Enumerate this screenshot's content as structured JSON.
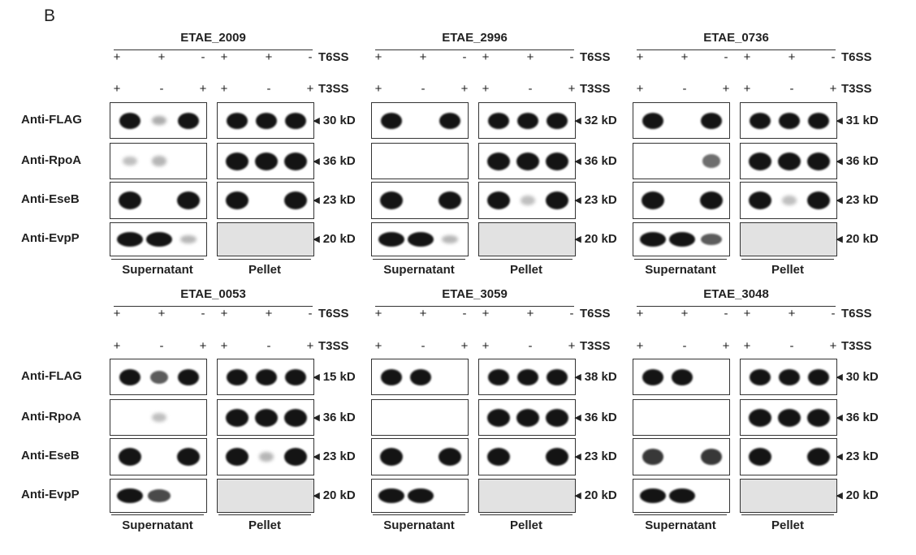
{
  "panel_label": "B",
  "t6ss_label": "T6SS",
  "t3ss_label": "T3SS",
  "antibodies": [
    "Anti-FLAG",
    "Anti-RpoA",
    "Anti-EseB",
    "Anti-EvpP"
  ],
  "fractions": [
    "Supernatant",
    "Pellet"
  ],
  "t6ss_signs": [
    "+",
    "+",
    "-",
    "+",
    "+",
    "-"
  ],
  "t3ss_signs": [
    "+",
    "-",
    "+",
    "+",
    "-",
    "+"
  ],
  "arrow_glyph": "◂",
  "groups": [
    {
      "protein": "ETAE_2009",
      "flag_mw": "30 kD",
      "rpoa_mw": "36 kD",
      "eseb_mw": "23 kD",
      "evpp_mw": "20 kD"
    },
    {
      "protein": "ETAE_2996",
      "flag_mw": "32 kD",
      "rpoa_mw": "36 kD",
      "eseb_mw": "23 kD",
      "evpp_mw": "20 kD"
    },
    {
      "protein": "ETAE_0736",
      "flag_mw": "31 kD",
      "rpoa_mw": "36 kD",
      "eseb_mw": "23 kD",
      "evpp_mw": "20 kD"
    },
    {
      "protein": "ETAE_0053",
      "flag_mw": "15 kD",
      "rpoa_mw": "36 kD",
      "eseb_mw": "23 kD",
      "evpp_mw": "20 kD"
    },
    {
      "protein": "ETAE_3059",
      "flag_mw": "38 kD",
      "rpoa_mw": "36 kD",
      "eseb_mw": "23 kD",
      "evpp_mw": "20 kD"
    },
    {
      "protein": "ETAE_3048",
      "flag_mw": "30 kD",
      "rpoa_mw": "36 kD",
      "eseb_mw": "23 kD",
      "evpp_mw": "20 kD"
    }
  ],
  "band_intensity": [
    {
      "sup": [
        [
          1,
          0.15,
          1
        ],
        [
          0.05,
          0.1,
          0
        ],
        [
          1,
          0,
          1
        ],
        [
          1,
          1,
          0.1
        ]
      ],
      "pel": [
        [
          1,
          1,
          1
        ],
        [
          1,
          1,
          1
        ],
        [
          1,
          0,
          1
        ],
        [
          0,
          0,
          0
        ]
      ]
    },
    {
      "sup": [
        [
          1,
          0,
          1
        ],
        [
          0,
          0,
          0
        ],
        [
          1,
          0,
          1
        ],
        [
          1,
          1,
          0.1
        ]
      ],
      "pel": [
        [
          1,
          1,
          1
        ],
        [
          1,
          1,
          1
        ],
        [
          1,
          0.05,
          1
        ],
        [
          0,
          0,
          0
        ]
      ]
    },
    {
      "sup": [
        [
          1,
          0,
          1
        ],
        [
          0,
          0,
          0.5
        ],
        [
          1,
          0,
          1
        ],
        [
          1,
          1,
          0.6
        ]
      ],
      "pel": [
        [
          1,
          1,
          1
        ],
        [
          1,
          1,
          1
        ],
        [
          1,
          0.05,
          1
        ],
        [
          0,
          0,
          0
        ]
      ]
    },
    {
      "sup": [
        [
          1,
          0.6,
          1
        ],
        [
          0,
          0.05,
          0
        ],
        [
          1,
          0,
          1
        ],
        [
          1,
          0.7,
          0
        ]
      ],
      "pel": [
        [
          1,
          1,
          1
        ],
        [
          1,
          1,
          1
        ],
        [
          1,
          0.1,
          1
        ],
        [
          0,
          0,
          0
        ]
      ]
    },
    {
      "sup": [
        [
          1,
          1,
          0
        ],
        [
          0,
          0,
          0
        ],
        [
          1,
          0,
          1
        ],
        [
          1,
          1,
          0
        ]
      ],
      "pel": [
        [
          1,
          1,
          1
        ],
        [
          1,
          1,
          1
        ],
        [
          1,
          0,
          1
        ],
        [
          0,
          0,
          0
        ]
      ]
    },
    {
      "sup": [
        [
          1,
          1,
          0
        ],
        [
          0,
          0,
          0
        ],
        [
          0.8,
          0,
          0.8
        ],
        [
          1,
          1,
          0
        ]
      ],
      "pel": [
        [
          1,
          1,
          1
        ],
        [
          1,
          1,
          1
        ],
        [
          1,
          0,
          1
        ],
        [
          0,
          0,
          0
        ]
      ]
    }
  ]
}
